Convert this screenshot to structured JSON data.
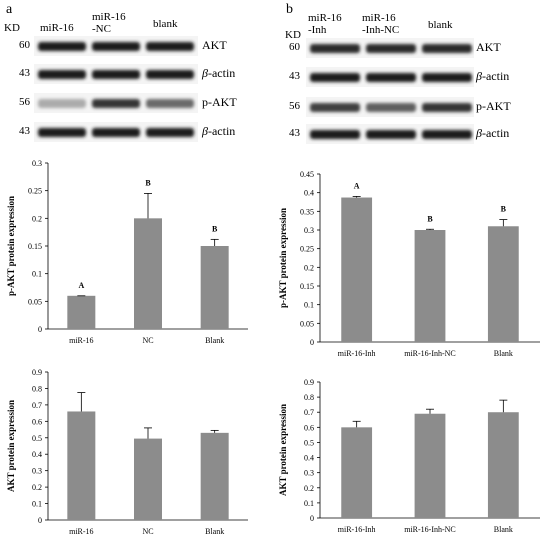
{
  "panel_a": {
    "letter": "a",
    "kd_label": "KD",
    "lanes": [
      "miR-16",
      "miR-16\n-NC",
      "blank"
    ],
    "blots": [
      {
        "mw": "60",
        "protein": "AKT",
        "italic_prefix": "",
        "intensities": [
          0.95,
          0.95,
          0.95
        ]
      },
      {
        "mw": "43",
        "protein": "-actin",
        "italic_prefix": "β",
        "intensities": [
          0.95,
          0.95,
          0.95
        ]
      },
      {
        "mw": "56",
        "protein": "p-AKT",
        "italic_prefix": "",
        "intensities": [
          0.3,
          0.85,
          0.6
        ]
      },
      {
        "mw": "43",
        "protein": "-actin",
        "italic_prefix": "β",
        "intensities": [
          0.95,
          0.95,
          0.95
        ]
      }
    ]
  },
  "panel_b": {
    "letter": "b",
    "kd_label": "KD",
    "lanes": [
      "miR-16\n-Inh",
      "miR-16\n-Inh-NC",
      "blank"
    ],
    "blots": [
      {
        "mw": "60",
        "protein": "AKT",
        "italic_prefix": "",
        "intensities": [
          0.9,
          0.9,
          0.9
        ]
      },
      {
        "mw": "43",
        "protein": "-actin",
        "italic_prefix": "β",
        "intensities": [
          0.95,
          0.95,
          0.95
        ]
      },
      {
        "mw": "56",
        "protein": "p-AKT",
        "italic_prefix": "",
        "intensities": [
          0.8,
          0.65,
          0.85
        ]
      },
      {
        "mw": "43",
        "protein": "-actin",
        "italic_prefix": "β",
        "intensities": [
          0.95,
          0.95,
          0.95
        ]
      }
    ]
  },
  "chart_data": [
    {
      "type": "bar",
      "categories": [
        "miR-16",
        "NC",
        "Blank"
      ],
      "values": [
        0.06,
        0.2,
        0.15
      ],
      "errors": [
        0.0,
        0.045,
        0.012
      ],
      "annotations": [
        "A",
        "B",
        "B"
      ],
      "ylabel": "p-AKT protein expression",
      "ylim": [
        0,
        0.3
      ],
      "yticks": [
        "0",
        "0.05",
        "0.1",
        "0.15",
        "0.2",
        "0.25",
        "0.3"
      ],
      "bar_color": "#8c8c8c"
    },
    {
      "type": "bar",
      "categories": [
        "miR-16-Inh",
        "miR-16-Inh-NC",
        "Blank"
      ],
      "values": [
        0.387,
        0.3,
        0.31
      ],
      "errors": [
        0.003,
        0.002,
        0.018
      ],
      "annotations": [
        "A",
        "B",
        "B"
      ],
      "ylabel": "p-AKT protein expression",
      "ylim": [
        0,
        0.45
      ],
      "yticks": [
        "0",
        "0.05",
        "0.1",
        "0.15",
        "0.2",
        "0.25",
        "0.3",
        "0.35",
        "0.4",
        "0.45"
      ],
      "bar_color": "#8c8c8c"
    },
    {
      "type": "bar",
      "categories": [
        "miR-16",
        "NC",
        "Blank"
      ],
      "values": [
        0.66,
        0.495,
        0.53
      ],
      "errors": [
        0.115,
        0.065,
        0.015
      ],
      "annotations": [
        "",
        "",
        ""
      ],
      "ylabel": "AKT protein expression",
      "ylim": [
        0,
        0.9
      ],
      "yticks": [
        "0",
        "0.1",
        "0.2",
        "0.3",
        "0.4",
        "0.5",
        "0.6",
        "0.7",
        "0.8",
        "0.9"
      ],
      "bar_color": "#8c8c8c"
    },
    {
      "type": "bar",
      "categories": [
        "miR-16-Inh",
        "miR-16-Inh-NC",
        "Blank"
      ],
      "values": [
        0.6,
        0.69,
        0.7
      ],
      "errors": [
        0.04,
        0.03,
        0.08
      ],
      "annotations": [
        "",
        "",
        ""
      ],
      "ylabel": "AKT protein expression",
      "ylim": [
        0,
        0.9
      ],
      "yticks": [
        "0",
        "0.1",
        "0.2",
        "0.3",
        "0.4",
        "0.5",
        "0.6",
        "0.7",
        "0.8",
        "0.9"
      ],
      "bar_color": "#8c8c8c"
    }
  ]
}
